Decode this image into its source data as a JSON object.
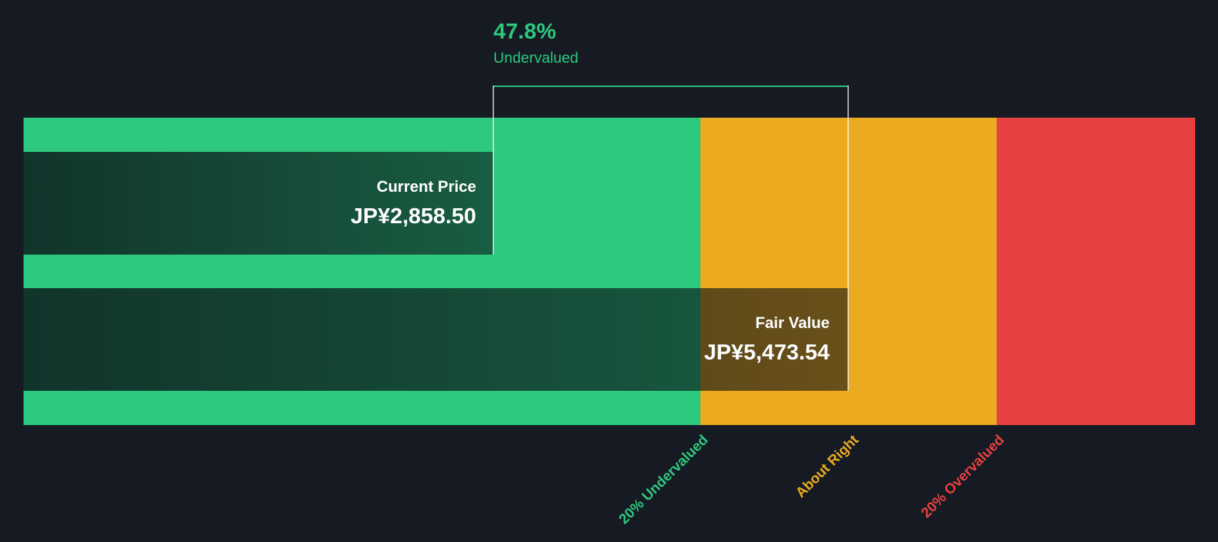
{
  "chart_data": {
    "type": "bar",
    "orientation": "horizontal",
    "annotation": {
      "percent": "47.8%",
      "label": "Undervalued",
      "discount_pct": 47.8
    },
    "categories": [
      "Current Price",
      "Fair Value"
    ],
    "values": [
      2858.5,
      5473.54
    ],
    "currency": "JP¥",
    "bars": [
      {
        "label": "Current Price",
        "display_value": "JP¥2,858.50",
        "value": 2858.5
      },
      {
        "label": "Fair Value",
        "display_value": "JP¥5,473.54",
        "value": 5473.54
      }
    ],
    "zones": [
      {
        "label": "20% Undervalued",
        "color": "#2dc97e"
      },
      {
        "label": "About Right",
        "color": "#ebaa20"
      },
      {
        "label": "20% Overvalued",
        "color": "#e64141"
      }
    ],
    "zone_boundaries_ratio_of_fair_value": [
      0.8,
      1.2
    ],
    "legend": "none",
    "grid": false,
    "colors": {
      "background": "#151a23",
      "green": "#2dc97e",
      "amber": "#ebaa20",
      "red": "#e64141",
      "text": "#ffffff"
    }
  }
}
